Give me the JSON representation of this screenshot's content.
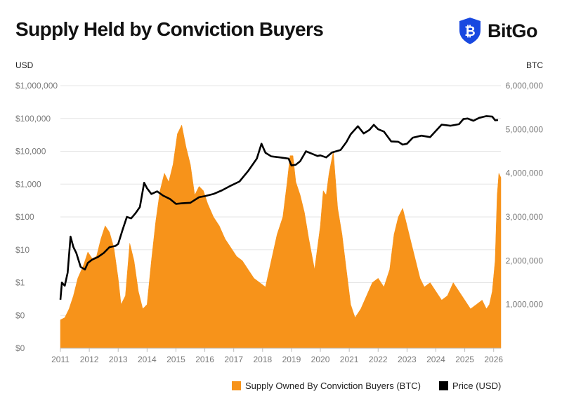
{
  "header": {
    "title": "Supply Held by Conviction Buyers",
    "brand": "BitGo",
    "brand_glyph": "₿"
  },
  "colors": {
    "supply": "#F7931A",
    "price": "#000000",
    "brand": "#1848E0",
    "grid": "#e6e6e6",
    "axis_text": "#7a7a7a"
  },
  "chart_data": {
    "type": "area",
    "title": "Supply Held by Conviction Buyers",
    "left_axis": {
      "unit_label": "USD",
      "scale": "log",
      "tick_labels": [
        "$0",
        "$0",
        "$1",
        "$10",
        "$100",
        "$1,000",
        "$10,000",
        "$100,000",
        "$1,000,000"
      ],
      "tick_values": [
        0.01,
        0.1,
        1,
        10,
        100,
        1000,
        10000,
        100000,
        1000000
      ],
      "range": [
        0.01,
        1000000
      ]
    },
    "right_axis": {
      "unit_label": "BTC",
      "scale": "linear",
      "tick_labels": [
        "1,000,000",
        "2,000,000",
        "3,000,000",
        "4,000,000",
        "5,000,000",
        "6,000,000"
      ],
      "tick_values": [
        1000000,
        2000000,
        3000000,
        4000000,
        5000000,
        6000000
      ],
      "range": [
        0,
        6000000
      ]
    },
    "x_axis": {
      "tick_labels": [
        "2011",
        "2012",
        "2013",
        "2014",
        "2015",
        "2016",
        "2017",
        "2018",
        "2019",
        "2020",
        "2021",
        "2022",
        "2023",
        "2024",
        "2025",
        "2026"
      ],
      "range": [
        2011.0,
        2026.25
      ]
    },
    "grid": true,
    "legend_position": "bottom-right",
    "series": [
      {
        "name": "Supply Owned By Conviction Buyers (BTC)",
        "axis": "right",
        "type": "area",
        "x": [
          2011.0,
          2011.15,
          2011.3,
          2011.45,
          2011.6,
          2011.8,
          2011.95,
          2012.1,
          2012.25,
          2012.4,
          2012.55,
          2012.7,
          2012.85,
          2013.0,
          2013.1,
          2013.25,
          2013.4,
          2013.55,
          2013.7,
          2013.85,
          2014.0,
          2014.15,
          2014.3,
          2014.45,
          2014.6,
          2014.75,
          2014.9,
          2015.05,
          2015.2,
          2015.35,
          2015.5,
          2015.65,
          2015.8,
          2015.95,
          2016.1,
          2016.3,
          2016.5,
          2016.7,
          2016.9,
          2017.1,
          2017.3,
          2017.5,
          2017.7,
          2017.9,
          2018.1,
          2018.3,
          2018.5,
          2018.7,
          2018.85,
          2018.95,
          2019.05,
          2019.15,
          2019.3,
          2019.45,
          2019.6,
          2019.8,
          2020.0,
          2020.1,
          2020.2,
          2020.3,
          2020.45,
          2020.6,
          2020.75,
          2020.9,
          2021.05,
          2021.2,
          2021.4,
          2021.6,
          2021.8,
          2022.0,
          2022.2,
          2022.4,
          2022.55,
          2022.7,
          2022.85,
          2023.0,
          2023.15,
          2023.3,
          2023.45,
          2023.6,
          2023.8,
          2024.0,
          2024.2,
          2024.4,
          2024.6,
          2024.8,
          2025.0,
          2025.2,
          2025.4,
          2025.6,
          2025.75,
          2025.85,
          2025.95,
          2026.05,
          2026.12,
          2026.18,
          2026.25
        ],
        "values": [
          650000,
          700000,
          900000,
          1200000,
          1600000,
          1900000,
          2200000,
          2050000,
          2100000,
          2500000,
          2800000,
          2650000,
          2300000,
          1600000,
          1000000,
          1200000,
          2400000,
          2000000,
          1300000,
          900000,
          1000000,
          2000000,
          2900000,
          3600000,
          4000000,
          3800000,
          4200000,
          4900000,
          5100000,
          4600000,
          4200000,
          3500000,
          3700000,
          3600000,
          3300000,
          3000000,
          2800000,
          2500000,
          2300000,
          2100000,
          2000000,
          1800000,
          1600000,
          1500000,
          1400000,
          2000000,
          2600000,
          3000000,
          3800000,
          4400000,
          4400000,
          3800000,
          3500000,
          3100000,
          2500000,
          1800000,
          2800000,
          3600000,
          3500000,
          4000000,
          4500000,
          3200000,
          2600000,
          1800000,
          1000000,
          700000,
          900000,
          1200000,
          1500000,
          1600000,
          1400000,
          1800000,
          2600000,
          3000000,
          3200000,
          2800000,
          2400000,
          2000000,
          1600000,
          1400000,
          1500000,
          1300000,
          1100000,
          1200000,
          1500000,
          1300000,
          1100000,
          900000,
          1000000,
          1100000,
          900000,
          1000000,
          1300000,
          2000000,
          3500000,
          4000000,
          3900000
        ]
      },
      {
        "name": "Price (USD)",
        "axis": "left",
        "type": "line",
        "x": [
          2011.0,
          2011.05,
          2011.15,
          2011.25,
          2011.35,
          2011.45,
          2011.55,
          2011.7,
          2011.85,
          2011.95,
          2012.1,
          2012.3,
          2012.5,
          2012.7,
          2012.9,
          2013.0,
          2013.15,
          2013.3,
          2013.45,
          2013.6,
          2013.75,
          2013.9,
          2014.0,
          2014.15,
          2014.35,
          2014.55,
          2014.8,
          2015.0,
          2015.2,
          2015.5,
          2015.8,
          2016.0,
          2016.3,
          2016.6,
          2016.9,
          2017.2,
          2017.5,
          2017.8,
          2017.96,
          2018.1,
          2018.3,
          2018.6,
          2018.9,
          2019.0,
          2019.15,
          2019.3,
          2019.5,
          2019.7,
          2019.9,
          2020.0,
          2020.2,
          2020.4,
          2020.7,
          2020.9,
          2021.05,
          2021.3,
          2021.5,
          2021.7,
          2021.85,
          2022.0,
          2022.2,
          2022.45,
          2022.7,
          2022.85,
          2023.0,
          2023.2,
          2023.5,
          2023.8,
          2024.0,
          2024.2,
          2024.5,
          2024.8,
          2024.95,
          2025.1,
          2025.3,
          2025.5,
          2025.75,
          2025.95,
          2026.05,
          2026.15
        ],
        "values": [
          0.3,
          1,
          0.8,
          2,
          25,
          12,
          8,
          3,
          2.5,
          4,
          5,
          6,
          8,
          12,
          13,
          15,
          40,
          100,
          90,
          130,
          200,
          1100,
          750,
          500,
          600,
          450,
          350,
          250,
          260,
          270,
          400,
          430,
          500,
          650,
          900,
          1200,
          2500,
          6000,
          17000,
          9000,
          7000,
          6500,
          6000,
          3700,
          3900,
          5000,
          10000,
          8500,
          7200,
          7500,
          6500,
          9200,
          11000,
          19000,
          33000,
          58000,
          35000,
          45000,
          64000,
          47000,
          40000,
          20000,
          19500,
          16000,
          17000,
          26000,
          30000,
          27000,
          42000,
          65000,
          60000,
          67000,
          96000,
          100000,
          85000,
          105000,
          118000,
          114000,
          88000,
          90000
        ]
      }
    ]
  },
  "legend": {
    "items": [
      {
        "label": "Supply Owned By Conviction Buyers (BTC)",
        "color": "#F7931A"
      },
      {
        "label": "Price (USD)",
        "color": "#000000"
      }
    ]
  }
}
